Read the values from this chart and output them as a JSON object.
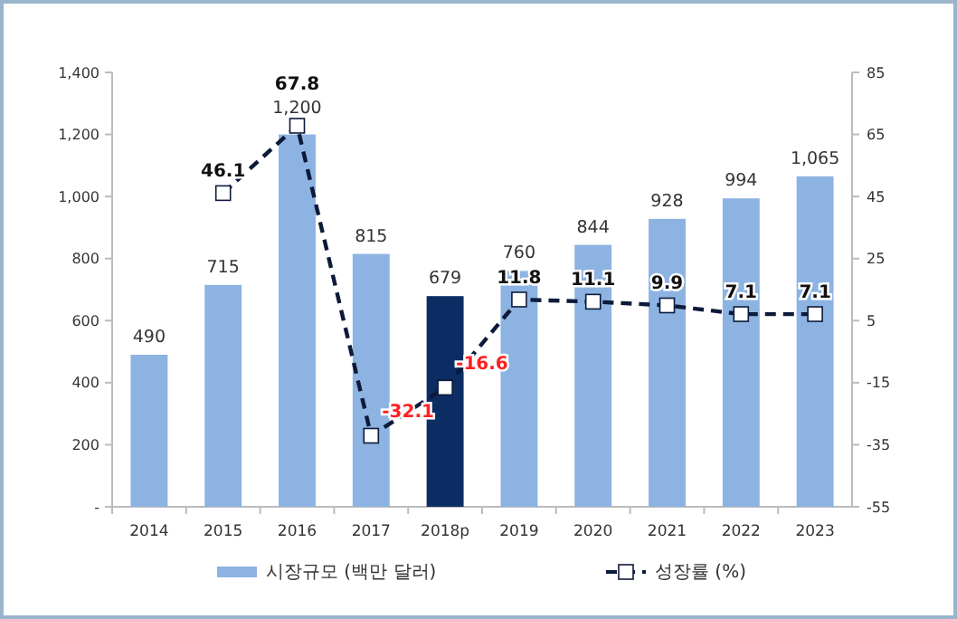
{
  "chart_data": {
    "type": "bar",
    "categories": [
      "2014",
      "2015",
      "2016",
      "2017",
      "2018p",
      "2019",
      "2020",
      "2021",
      "2022",
      "2023"
    ],
    "series": [
      {
        "name": "시장규모 (백만 달러)",
        "color": "#8db3e2",
        "colors": [
          "#8db3e2",
          "#8db3e2",
          "#8db3e2",
          "#8db3e2",
          "#0b2d64",
          "#8db3e2",
          "#8db3e2",
          "#8db3e2",
          "#8db3e2",
          "#8db3e2"
        ],
        "values": [
          490,
          715,
          1200,
          815,
          679,
          760,
          844,
          928,
          994,
          1065
        ],
        "value_labels": [
          "490",
          "715",
          "1,200",
          "815",
          "679",
          "760",
          "844",
          "928",
          "994",
          "1,065"
        ]
      },
      {
        "name": "성장률 (%)",
        "type": "line",
        "axis": "y2",
        "color": "#0d1a3a",
        "line_style": "dashed",
        "marker": "square",
        "values": [
          null,
          46.1,
          67.8,
          -32.1,
          -16.6,
          11.8,
          11.1,
          9.9,
          7.1,
          7.1
        ]
      }
    ],
    "ylim": [
      0,
      1400
    ],
    "yticks": [
      {
        "value": 0,
        "label": "-"
      },
      {
        "value": 200,
        "label": "200"
      },
      {
        "value": 400,
        "label": "400"
      },
      {
        "value": 600,
        "label": "600"
      },
      {
        "value": 800,
        "label": "800"
      },
      {
        "value": 1000,
        "label": "1,000"
      },
      {
        "value": 1200,
        "label": "1,200"
      },
      {
        "value": 1400,
        "label": "1,400"
      }
    ],
    "y2lim": [
      -55,
      85
    ],
    "y2ticks": [
      -55,
      -35,
      -15,
      5,
      25,
      45,
      65,
      85
    ],
    "data_labels": true,
    "grid": false,
    "legend": "bottom"
  }
}
